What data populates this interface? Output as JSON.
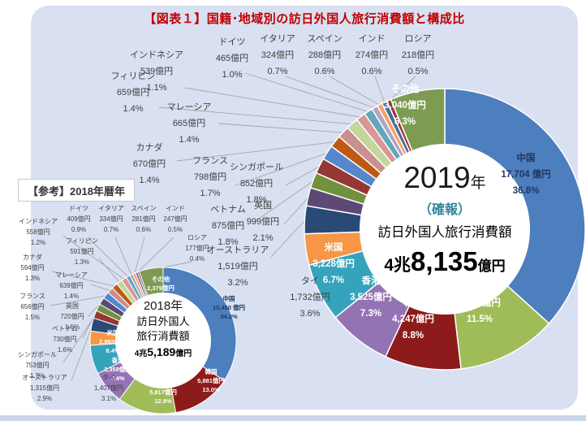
{
  "page": {
    "title": "【図表１】国籍･地域別の訪日外国人旅行消費額と構成比",
    "title_color": "#C00000",
    "panel_bg": "#D8E0F1",
    "reference_label": "【参考】2018年暦年"
  },
  "chart_data": [
    {
      "id": "y2019",
      "type": "pie",
      "subtype": "donut",
      "unit": "億円",
      "legend_position": "labels-on-chart",
      "center": {
        "year": "2019",
        "year_suffix": "年",
        "note": "（確報）",
        "note_color": "#31859C",
        "label": "訪日外国人旅行消費額",
        "total_prefix": "4兆",
        "total_main": "8,135",
        "total_suffix": "億円",
        "total_oku": 48135
      },
      "slices": [
        {
          "name": "中国",
          "value_label": "17,704 億円",
          "value_oku": 17704,
          "pct": 36.8,
          "pct_label": "36.8%",
          "color": "#4D7EBD",
          "label_inside": true,
          "label_color": "#1F3864"
        },
        {
          "name": "台湾",
          "value_label": "5,517億円",
          "value_oku": 5517,
          "pct": 11.5,
          "pct_label": "11.5%",
          "color": "#9FBC59",
          "label_inside": true,
          "label_color": "#FFFFFF"
        },
        {
          "name": "韓国",
          "value_label": "4,247億円",
          "value_oku": 4247,
          "pct": 8.8,
          "pct_label": "8.8%",
          "color": "#8E1B1B",
          "label_inside": true,
          "label_color": "#FFFFFF"
        },
        {
          "name": "香港",
          "value_label": "3,525億円",
          "value_oku": 3525,
          "pct": 7.3,
          "pct_label": "7.3%",
          "color": "#9473B4",
          "label_inside": true,
          "label_color": "#FFFFFF"
        },
        {
          "name": "米国",
          "value_label": "3,228億円",
          "value_oku": 3228,
          "pct": 6.7,
          "pct_label": "6.7%",
          "color": "#35A3BC",
          "label_inside": true,
          "label_color": "#FFFFFF"
        },
        {
          "name": "タイ",
          "value_label": "1,732億円",
          "value_oku": 1732,
          "pct": 3.6,
          "pct_label": "3.6%",
          "color": "#F79646",
          "label_inside": false
        },
        {
          "name": "オーストラリア",
          "value_label": "1,519億円",
          "value_oku": 1519,
          "pct": 3.2,
          "pct_label": "3.2%",
          "color": "#2A4A76",
          "label_inside": false
        },
        {
          "name": "英国",
          "value_label": "999億円",
          "value_oku": 999,
          "pct": 2.1,
          "pct_label": "2.1%",
          "color": "#5C4976",
          "label_inside": false
        },
        {
          "name": "ベトナム",
          "value_label": "875億円",
          "value_oku": 875,
          "pct": 1.8,
          "pct_label": "1.8%",
          "color": "#72913F",
          "label_inside": false
        },
        {
          "name": "シンガポール",
          "value_label": "852億円",
          "value_oku": 852,
          "pct": 1.8,
          "pct_label": "1.8%",
          "color": "#953735",
          "label_inside": false
        },
        {
          "name": "フランス",
          "value_label": "798億円",
          "value_oku": 798,
          "pct": 1.7,
          "pct_label": "1.7%",
          "color": "#5588CB",
          "label_inside": false
        },
        {
          "name": "カナダ",
          "value_label": "670億円",
          "value_oku": 670,
          "pct": 1.4,
          "pct_label": "1.4%",
          "color": "#BE5A14",
          "label_inside": false
        },
        {
          "name": "マレーシア",
          "value_label": "665億円",
          "value_oku": 665,
          "pct": 1.4,
          "pct_label": "1.4%",
          "color": "#C9908F",
          "label_inside": false
        },
        {
          "name": "フィリピン",
          "value_label": "659億円",
          "value_oku": 659,
          "pct": 1.4,
          "pct_label": "1.4%",
          "color": "#C3D69B",
          "label_inside": false
        },
        {
          "name": "インドネシア",
          "value_label": "539億円",
          "value_oku": 539,
          "pct": 1.1,
          "pct_label": "1.1%",
          "color": "#D99694",
          "label_inside": false
        },
        {
          "name": "ドイツ",
          "value_label": "465億円",
          "value_oku": 465,
          "pct": 1.0,
          "pct_label": "1.0%",
          "color": "#62A7BC",
          "label_inside": false
        },
        {
          "name": "イタリア",
          "value_label": "324億円",
          "value_oku": 324,
          "pct": 0.7,
          "pct_label": "0.7%",
          "color": "#B3A2C7",
          "label_inside": false
        },
        {
          "name": "スペイン",
          "value_label": "288億円",
          "value_oku": 288,
          "pct": 0.6,
          "pct_label": "0.6%",
          "color": "#F2A45F",
          "label_inside": false
        },
        {
          "name": "インド",
          "value_label": "274億円",
          "value_oku": 274,
          "pct": 0.6,
          "pct_label": "0.6%",
          "color": "#49699F",
          "label_inside": false
        },
        {
          "name": "ロシア",
          "value_label": "218億円",
          "value_oku": 218,
          "pct": 0.5,
          "pct_label": "0.5%",
          "color": "#9B3B35",
          "label_inside": false
        },
        {
          "name": "その他",
          "value_label": "3,040億円",
          "value_oku": 3040,
          "pct": 6.3,
          "pct_label": "6.3%",
          "color": "#7D9C52",
          "label_inside": true,
          "label_color": "#FFFFFF"
        }
      ]
    },
    {
      "id": "y2018",
      "type": "pie",
      "subtype": "donut",
      "unit": "億円",
      "legend_position": "labels-on-chart",
      "center": {
        "year": "2018年",
        "label_line1": "訪日外国人",
        "label_line2": "旅行消費額",
        "total_prefix": "4兆",
        "total_main": "5,189",
        "total_suffix": "億円",
        "total_oku": 45189
      },
      "slices": [
        {
          "name": "中国",
          "value_label": "15,450 億円",
          "value_oku": 15450,
          "pct": 34.2,
          "pct_label": "34.2%",
          "color": "#4D7EBD",
          "label_inside": true,
          "label_color": "#1F3864"
        },
        {
          "name": "韓国",
          "value_label": "5,881億円",
          "value_oku": 5881,
          "pct": 13.0,
          "pct_label": "13.0%",
          "color": "#8E1B1B",
          "label_inside": true,
          "label_color": "#FFFFFF"
        },
        {
          "name": "台湾",
          "value_label": "5,817億円",
          "value_oku": 5817,
          "pct": 12.9,
          "pct_label": "12.9%",
          "color": "#9FBC59",
          "label_inside": true,
          "label_color": "#FFFFFF"
        },
        {
          "name": "香港",
          "value_label": "3,358億円",
          "value_oku": 3358,
          "pct": 7.4,
          "pct_label": "7.4%",
          "color": "#9473B4",
          "label_inside": true,
          "label_color": "#FFFFFF"
        },
        {
          "name": "米国",
          "value_label": "2,893億円",
          "value_oku": 2893,
          "pct": 6.4,
          "pct_label": "6.4%",
          "color": "#35A3BC",
          "label_inside": true,
          "label_color": "#FFFFFF"
        },
        {
          "name": "タイ",
          "value_label": "1,407億円",
          "value_oku": 1407,
          "pct": 3.1,
          "pct_label": "3.1%",
          "color": "#F79646",
          "label_inside": false
        },
        {
          "name": "オーストラリア",
          "value_label": "1,315億円",
          "value_oku": 1315,
          "pct": 2.9,
          "pct_label": "2.9%",
          "color": "#2A4A76",
          "label_inside": false
        },
        {
          "name": "シンガポール",
          "value_label": "753億円",
          "value_oku": 753,
          "pct": 1.7,
          "pct_label": "1.7%",
          "color": "#953735",
          "label_inside": false
        },
        {
          "name": "ベトナム",
          "value_label": "730億円",
          "value_oku": 730,
          "pct": 1.6,
          "pct_label": "1.6%",
          "color": "#72913F",
          "label_inside": false
        },
        {
          "name": "英国",
          "value_label": "720億円",
          "value_oku": 720,
          "pct": 1.6,
          "pct_label": "1.6%",
          "color": "#5C4976",
          "label_inside": false
        },
        {
          "name": "フランス",
          "value_label": "656億円",
          "value_oku": 656,
          "pct": 1.5,
          "pct_label": "1.5%",
          "color": "#5588CB",
          "label_inside": false
        },
        {
          "name": "マレーシア",
          "value_label": "639億円",
          "value_oku": 639,
          "pct": 1.4,
          "pct_label": "1.4%",
          "color": "#C9908F",
          "label_inside": false
        },
        {
          "name": "カナダ",
          "value_label": "594億円",
          "value_oku": 594,
          "pct": 1.3,
          "pct_label": "1.3%",
          "color": "#BE5A14",
          "label_inside": false
        },
        {
          "name": "フィリピン",
          "value_label": "591億円",
          "value_oku": 591,
          "pct": 1.3,
          "pct_label": "1.3%",
          "color": "#C3D69B",
          "label_inside": false
        },
        {
          "name": "インドネシア",
          "value_label": "558億円",
          "value_oku": 558,
          "pct": 1.2,
          "pct_label": "1.2%",
          "color": "#D99694",
          "label_inside": false
        },
        {
          "name": "ドイツ",
          "value_label": "409億円",
          "value_oku": 409,
          "pct": 0.9,
          "pct_label": "0.9%",
          "color": "#62A7BC",
          "label_inside": false
        },
        {
          "name": "イタリア",
          "value_label": "334億円",
          "value_oku": 334,
          "pct": 0.7,
          "pct_label": "0.7%",
          "color": "#B3A2C7",
          "label_inside": false
        },
        {
          "name": "スペイン",
          "value_label": "281億円",
          "value_oku": 281,
          "pct": 0.6,
          "pct_label": "0.6%",
          "color": "#F2A45F",
          "label_inside": false
        },
        {
          "name": "インド",
          "value_label": "247億円",
          "value_oku": 247,
          "pct": 0.5,
          "pct_label": "0.5%",
          "color": "#49699F",
          "label_inside": false
        },
        {
          "name": "ロシア",
          "value_label": "177億円",
          "value_oku": 177,
          "pct": 0.4,
          "pct_label": "0.4%",
          "color": "#9B3B35",
          "label_inside": false
        },
        {
          "name": "その他",
          "value_label": "2,379億円",
          "value_oku": 2379,
          "pct": 5.3,
          "pct_label": "5.3%",
          "color": "#7D9C52",
          "label_inside": true,
          "label_color": "#FFFFFF"
        }
      ]
    }
  ]
}
